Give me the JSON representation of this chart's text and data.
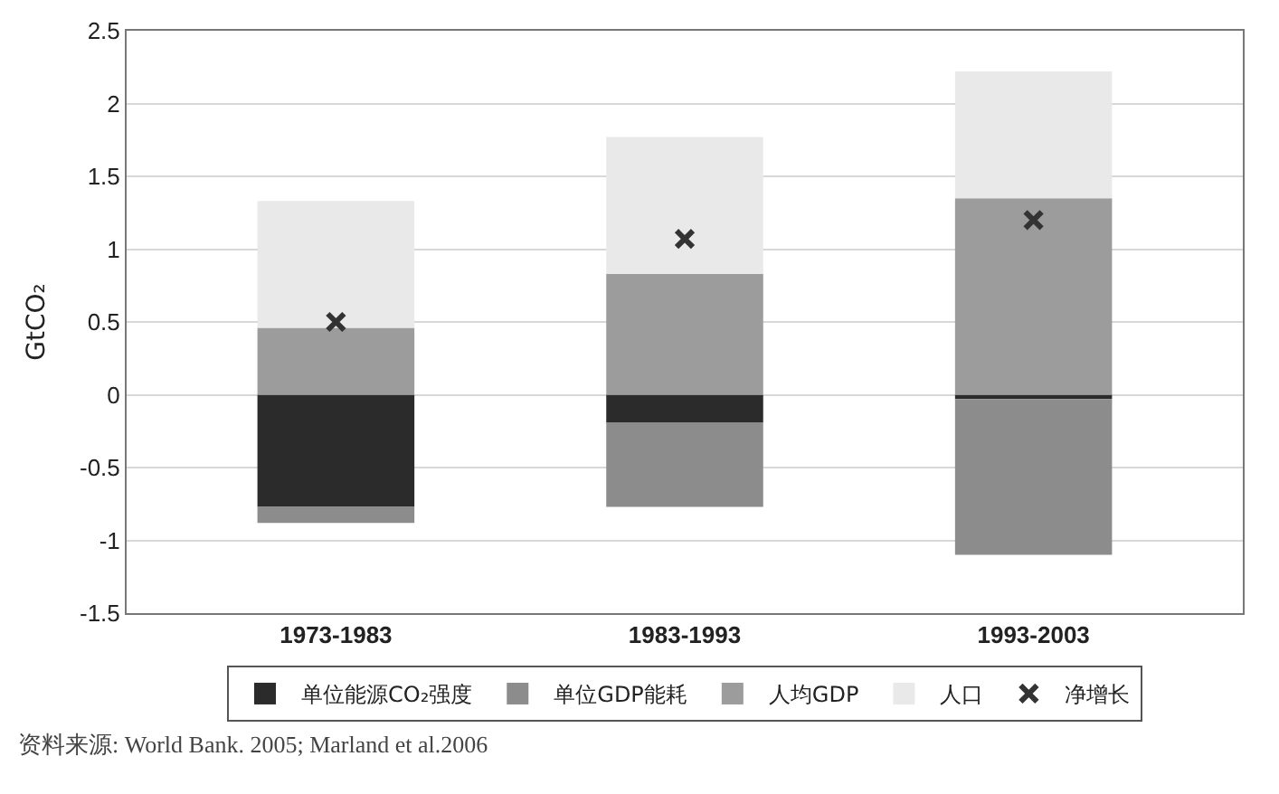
{
  "chart_data": {
    "type": "bar",
    "stacked": true,
    "ylabel": "GtCO₂",
    "categories": [
      "1973-1983",
      "1983-1993",
      "1993-2003"
    ],
    "series": [
      {
        "name": "单位能源CO₂强度",
        "color": "#2b2b2b",
        "values": [
          -0.77,
          -0.19,
          -0.03
        ]
      },
      {
        "name": "单位GDP能耗",
        "color": "#8c8c8c",
        "values": [
          -0.11,
          -0.58,
          -1.07
        ]
      },
      {
        "name": "人均GDP",
        "color": "#9c9c9c",
        "values": [
          0.46,
          0.83,
          1.35
        ]
      },
      {
        "name": "人口",
        "color": "#e9e9e9",
        "values": [
          0.87,
          0.94,
          0.87
        ]
      },
      {
        "name": "净增长",
        "type": "scatter",
        "marker": "cross",
        "color": "#333333",
        "x": [
          "1973-1983",
          "1983-1993",
          "1993-2003"
        ],
        "values": [
          0.5,
          1.07,
          1.2
        ]
      }
    ],
    "ylim": [
      -1.5,
      2.5
    ],
    "yticks": [
      -1.5,
      -1,
      -0.5,
      0,
      0.5,
      1,
      1.5,
      2,
      2.5
    ],
    "grid": "y",
    "legend": "bottom",
    "annotations": [
      "资料来源: World Bank. 2005; Marland et al.2006"
    ]
  }
}
